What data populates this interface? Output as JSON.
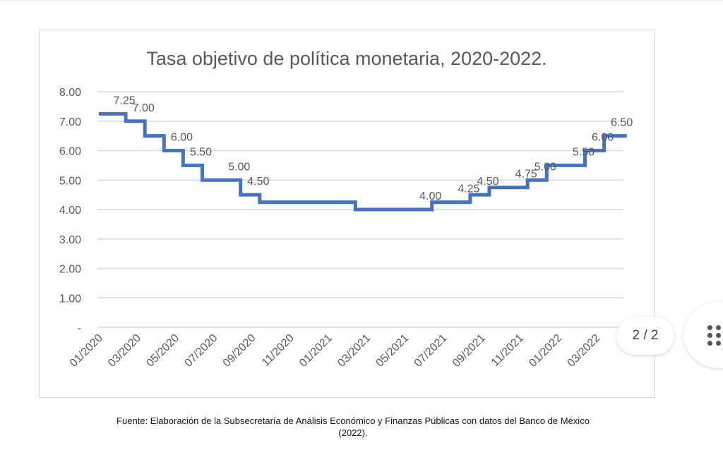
{
  "chart_data": {
    "type": "line",
    "step": true,
    "title": "Tasa objetivo de política monetaria, 2020-2022.",
    "xlabel": "",
    "ylabel": "",
    "ylim": [
      0,
      8
    ],
    "y_ticks": [
      "-",
      "1.00",
      "2.00",
      "3.00",
      "4.00",
      "5.00",
      "6.00",
      "7.00",
      "8.00"
    ],
    "x_ticks": [
      "01/2020",
      "03/2020",
      "05/2020",
      "07/2020",
      "09/2020",
      "11/2020",
      "01/2021",
      "03/2021",
      "05/2021",
      "07/2021",
      "09/2021",
      "11/2021",
      "01/2022",
      "03/2022"
    ],
    "grid": true,
    "legend": "none",
    "color": "#4472c4",
    "series": [
      {
        "points": [
          {
            "date": "01/2020",
            "value": 7.25
          },
          {
            "date": "02/2020",
            "value": 7.0
          },
          {
            "date": "03/2020",
            "value": 6.5
          },
          {
            "date": "04/2020",
            "value": 6.0
          },
          {
            "date": "05/2020",
            "value": 5.5
          },
          {
            "date": "06/2020",
            "value": 5.0
          },
          {
            "date": "08/2020",
            "value": 4.5
          },
          {
            "date": "09/2020",
            "value": 4.25
          },
          {
            "date": "02/2021",
            "value": 4.0
          },
          {
            "date": "06/2021",
            "value": 4.25
          },
          {
            "date": "08/2021",
            "value": 4.5
          },
          {
            "date": "09/2021",
            "value": 4.75
          },
          {
            "date": "11/2021",
            "value": 5.0
          },
          {
            "date": "12/2021",
            "value": 5.5
          },
          {
            "date": "02/2022",
            "value": 6.0
          },
          {
            "date": "03/2022",
            "value": 6.5
          }
        ],
        "end_date": "04/2022"
      }
    ],
    "data_labels": [
      {
        "date": "01/2020",
        "text": "7.25"
      },
      {
        "date": "02/2020",
        "text": "7.00"
      },
      {
        "date": "04/2020",
        "text": "6.00"
      },
      {
        "date": "05/2020",
        "text": "5.50"
      },
      {
        "date": "06/2020",
        "text": "5.00"
      },
      {
        "date": "08/2020",
        "text": "4.50"
      },
      {
        "date": "02/2021",
        "text": "4.00"
      },
      {
        "date": "06/2021",
        "text": "4.25"
      },
      {
        "date": "08/2021",
        "text": "4.50"
      },
      {
        "date": "09/2021",
        "text": "4.75"
      },
      {
        "date": "11/2021",
        "text": "5.00"
      },
      {
        "date": "12/2021",
        "text": "5.50"
      },
      {
        "date": "02/2022",
        "text": "6.00"
      },
      {
        "date": "03/2022",
        "text": "6.50"
      }
    ]
  },
  "caption": {
    "line1": "Fuente: Elaboración de la Subsecretaría de Análisis Económico y Finanzas Públicas con datos del Banco de México",
    "line2": "(2022)."
  },
  "viewer": {
    "page_indicator": "2 / 2",
    "menu_icon": "grid-dots-icon"
  }
}
